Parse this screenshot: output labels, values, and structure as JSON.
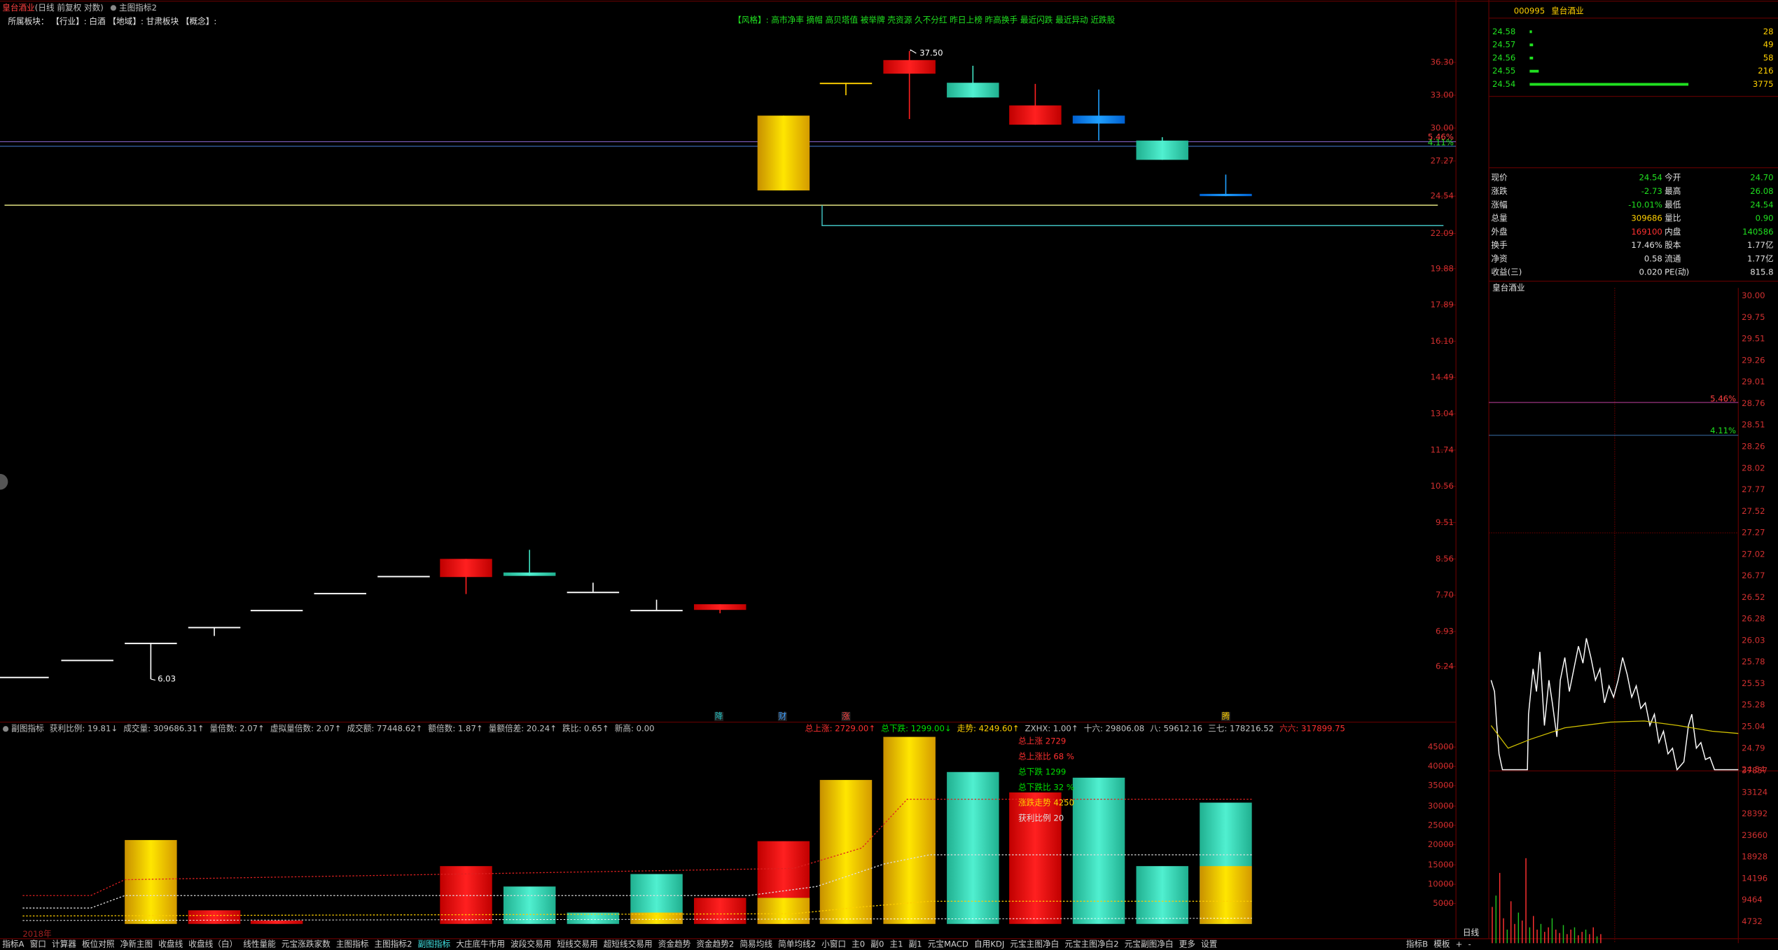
{
  "title_bar": {
    "stock": "皇台酒业",
    "mode": "(日线 前复权 对数)",
    "indicator": "主图指标2"
  },
  "sector_line": "所属板块： 【行业】: 白酒 【地域】: 甘肃板块 【概念】:",
  "style_tags": "【风格】: 高市净率 摘帽 高贝塔值 被举牌 壳资源 久不分红 昨日上榜 昨高换手 最近闪跌 最近异动 近跌股",
  "main_axis": [
    "36.30",
    "33.00",
    "30.00",
    "27.27",
    "24.54",
    "22.09",
    "19.88",
    "17.89",
    "16.10",
    "14.49",
    "13.04",
    "11.74",
    "10.56",
    "9.51",
    "8.56",
    "7.70",
    "6.93",
    "6.24"
  ],
  "main_annotations": {
    "high": "37.50",
    "low": "6.03",
    "pct_a": "5.46%",
    "pct_b": "4.11%",
    "markers": [
      "降",
      "财",
      "涨",
      "腾"
    ],
    "period": "日线",
    "year": "2018年"
  },
  "order_book": {
    "code": "000995",
    "name": "皇台酒业",
    "rows": [
      [
        "24.58",
        "28"
      ],
      [
        "24.57",
        "49"
      ],
      [
        "24.56",
        "58"
      ],
      [
        "24.55",
        "216"
      ],
      [
        "24.54",
        "3775"
      ]
    ]
  },
  "quote": [
    [
      "现价",
      "24.54",
      "今开",
      "24.70"
    ],
    [
      "涨跌",
      "-2.73",
      "最高",
      "26.08"
    ],
    [
      "涨幅",
      "-10.01%",
      "最低",
      "24.54"
    ],
    [
      "总量",
      "309686",
      "量比",
      "0.90"
    ],
    [
      "外盘",
      "169100",
      "内盘",
      "140586"
    ],
    [
      "换手",
      "17.46%",
      "股本",
      "1.77亿"
    ],
    [
      "净资",
      "0.58",
      "流通",
      "1.77亿"
    ],
    [
      "收益(三)",
      "0.020",
      "PE(动)",
      "815.8"
    ]
  ],
  "intraday": {
    "name": "皇台酒业",
    "price_axis": [
      "30.00",
      "29.75",
      "29.51",
      "29.26",
      "29.01",
      "28.76",
      "28.51",
      "28.26",
      "28.02",
      "27.77",
      "27.52",
      "27.27",
      "27.02",
      "26.77",
      "26.52",
      "26.28",
      "26.03",
      "25.78",
      "25.53",
      "25.28",
      "25.04",
      "24.79",
      "24.54"
    ],
    "volume_axis": [
      "37857",
      "33124",
      "28392",
      "23660",
      "18928",
      "14196",
      "9464",
      "4732"
    ],
    "pct_a": "5.46%",
    "pct_b": "4.11%"
  },
  "sub_header": {
    "left": [
      {
        "text": "副图指标",
        "color": "#c0c0c0"
      },
      {
        "text": "获利比例: 19.81↓",
        "color": "#c0c0c0"
      },
      {
        "text": "成交量: 309686.31↑",
        "color": "#c0c0c0"
      },
      {
        "text": "量倍数: 2.07↑",
        "color": "#c0c0c0"
      },
      {
        "text": "虚拟量倍数: 2.07↑",
        "color": "#c0c0c0"
      },
      {
        "text": "成交额: 77448.62↑",
        "color": "#c0c0c0"
      },
      {
        "text": "额倍数: 1.87↑",
        "color": "#c0c0c0"
      },
      {
        "text": "量额倍差: 20.24↑",
        "color": "#c0c0c0"
      },
      {
        "text": "跌比: 0.65↑",
        "color": "#c0c0c0"
      },
      {
        "text": "新高: 0.00",
        "color": "#c0c0c0"
      }
    ],
    "right": [
      {
        "text": "总上涨: 2729.00↑",
        "color": "#ff3030"
      },
      {
        "text": "总下跌: 1299.00↓",
        "color": "#00e000"
      },
      {
        "text": "走势: 4249.60↑",
        "color": "#ffd000"
      },
      {
        "text": "ZXHX: 1.00↑",
        "color": "#c0c0c0"
      },
      {
        "text": "十六: 29806.08",
        "color": "#c0c0c0"
      },
      {
        "text": "八: 59612.16",
        "color": "#c0c0c0"
      },
      {
        "text": "三七: 178216.52",
        "color": "#c0c0c0"
      },
      {
        "text": "六六: 317899.75",
        "color": "#ff3030"
      }
    ]
  },
  "sub_axis": [
    "45000",
    "40000",
    "35000",
    "30000",
    "25000",
    "20000",
    "15000",
    "10000",
    "5000"
  ],
  "sub_notes": [
    {
      "text": "总上涨 2729",
      "color": "#ff3030"
    },
    {
      "text": "总上涨比 68 %",
      "color": "#ff3030"
    },
    {
      "text": "总下跌 1299",
      "color": "#00e000"
    },
    {
      "text": "总下跌比 32 %",
      "color": "#00e000"
    },
    {
      "text": "涨跌走势 4250",
      "color": "#ffd000"
    },
    {
      "text": "获利比例 20",
      "color": "#e0e0e0"
    }
  ],
  "tabs": [
    "指标A",
    "窗口",
    "计算器",
    "板位对照",
    "净新主图",
    "收盘线",
    "收盘线（白）",
    "线性量能",
    "元宝涨跌家数",
    "主图指标",
    "主图指标2",
    "副图指标",
    "大庄底牛市用",
    "波段交易用",
    "短线交易用",
    "超短线交易用",
    "资金趋势",
    "资金趋势2",
    "简易均线",
    "简单均线2",
    "小窗口",
    "主0",
    "副0",
    "主1",
    "副1",
    "元宝MACD",
    "自用KDJ",
    "元宝主图净白",
    "元宝主图净白2",
    "元宝副图净白",
    "更多",
    "设置"
  ],
  "tabs_right": [
    "指标B",
    "模板",
    "+",
    "-"
  ]
}
